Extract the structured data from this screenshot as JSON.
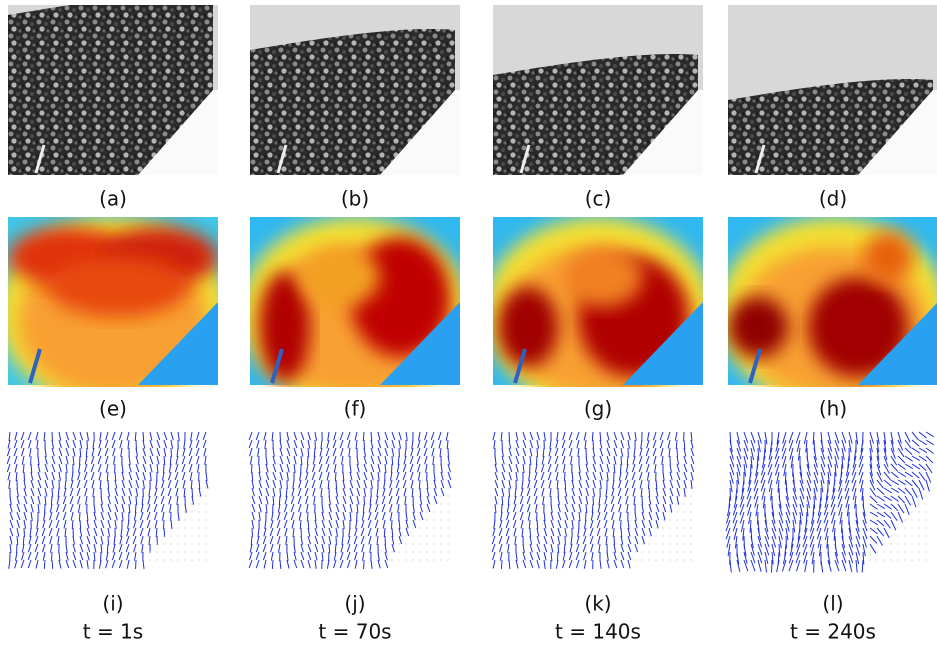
{
  "captions": [
    [
      "(a)",
      "(b)",
      "(c)",
      "(d)"
    ],
    [
      "(e)",
      "(f)",
      "(g)",
      "(h)"
    ],
    [
      "(i)",
      "(j)",
      "(k)",
      "(l)"
    ]
  ],
  "times": [
    "t = 1s",
    "t = 70s",
    "t = 140s",
    "t = 240s"
  ]
}
